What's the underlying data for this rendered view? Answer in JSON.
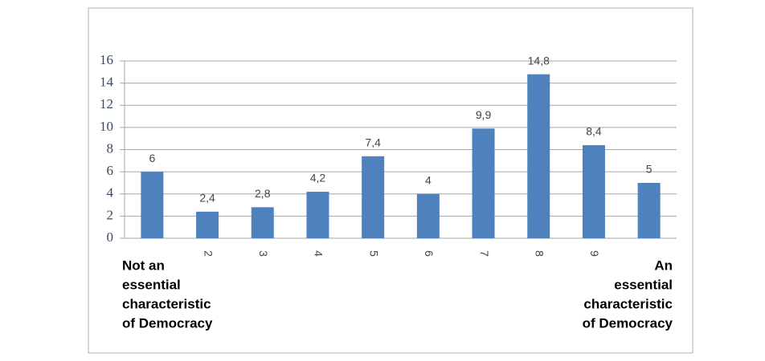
{
  "chart_data": {
    "type": "bar",
    "categories": [
      null,
      "2",
      "3",
      "4",
      "5",
      "6",
      "7",
      "8",
      "9",
      null
    ],
    "values": [
      6,
      2.4,
      2.8,
      4.2,
      7.4,
      4,
      9.9,
      14.8,
      8.4,
      5
    ],
    "value_labels": [
      "6",
      "2,4",
      "2,8",
      "4,2",
      "7,4",
      "4",
      "9,9",
      "14,8",
      "8,4",
      "5"
    ],
    "color": "#4f81bd",
    "ylim": [
      0,
      16
    ],
    "yticks": [
      0,
      2,
      4,
      6,
      8,
      10,
      12,
      14,
      16
    ],
    "grid": true,
    "annotations": [
      {
        "lines": [
          "Not an",
          "essential",
          "characteristic",
          "of Democracy"
        ]
      },
      {
        "lines": [
          "An",
          "essential",
          "characteristic",
          "of Democracy"
        ]
      }
    ]
  }
}
